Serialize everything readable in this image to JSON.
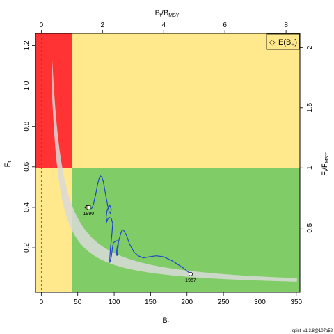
{
  "chart_data": {
    "type": "line",
    "xlabel": {
      "main": "B",
      "sub": "t"
    },
    "ylabel": {
      "main": "F",
      "sub": "t"
    },
    "top_label": {
      "a": "B",
      "a_sub": "t",
      "slash": "/",
      "b": "B",
      "b_sub": "MSY"
    },
    "right_label": {
      "a": "F",
      "a_sub": "t",
      "slash": "/",
      "b": "F",
      "b_sub": "MSY"
    },
    "xlim": [
      -8,
      355
    ],
    "ylim": [
      -0.02,
      1.26
    ],
    "x_ticks": [
      "0",
      "50",
      "100",
      "150",
      "200",
      "250",
      "300",
      "350"
    ],
    "y_ticks": [
      "0.2",
      "0.4",
      "0.6",
      "0.8",
      "1.0",
      "1.2"
    ],
    "top_ticks": [
      "0",
      "2",
      "4",
      "6",
      "8"
    ],
    "right_ticks": [
      "0.5",
      "1",
      "1.5",
      "2"
    ],
    "Bmsy": 42,
    "Fmsy": 0.595,
    "zones": {
      "red": "#ff3333",
      "yellow": "#ffe98c",
      "green": "#80cc66"
    },
    "band_color": "#d9d9d9",
    "line_color": "#2244cc",
    "legend": {
      "marker": "◇",
      "label_main": "E(B",
      "label_sub": "∞",
      "label_end": ")"
    },
    "trajectory": {
      "x": [
        205,
        195,
        180,
        168,
        158,
        148,
        140,
        133,
        127,
        121,
        117,
        113,
        111,
        109,
        106,
        104,
        103,
        104,
        105,
        106,
        104,
        101,
        99,
        98,
        97,
        96,
        95,
        94,
        94,
        95,
        97,
        98,
        96,
        93,
        91,
        90,
        89,
        90,
        92,
        94,
        96,
        95,
        93,
        91,
        89,
        87,
        85,
        83,
        81,
        79,
        77,
        75,
        73,
        72,
        71,
        70,
        69,
        68,
        67,
        66,
        65
      ],
      "y": [
        0.07,
        0.1,
        0.135,
        0.155,
        0.16,
        0.155,
        0.15,
        0.16,
        0.18,
        0.22,
        0.26,
        0.285,
        0.29,
        0.27,
        0.23,
        0.2,
        0.17,
        0.16,
        0.19,
        0.23,
        0.235,
        0.23,
        0.225,
        0.21,
        0.18,
        0.155,
        0.135,
        0.13,
        0.15,
        0.2,
        0.27,
        0.32,
        0.345,
        0.35,
        0.34,
        0.33,
        0.35,
        0.38,
        0.4,
        0.41,
        0.39,
        0.37,
        0.38,
        0.41,
        0.45,
        0.49,
        0.53,
        0.55,
        0.555,
        0.54,
        0.51,
        0.47,
        0.44,
        0.42,
        0.41,
        0.4,
        0.395,
        0.39,
        0.39,
        0.395,
        0.4
      ]
    },
    "end_points": [
      {
        "label": "1990",
        "x": 65,
        "y": 0.4,
        "shape": "square"
      },
      {
        "label": "1967",
        "x": 205,
        "y": 0.07,
        "shape": "circle"
      }
    ],
    "equilibrium_point": {
      "x": 63,
      "y": 0.4
    },
    "footer": "spict_v1.3.8@107a52"
  }
}
